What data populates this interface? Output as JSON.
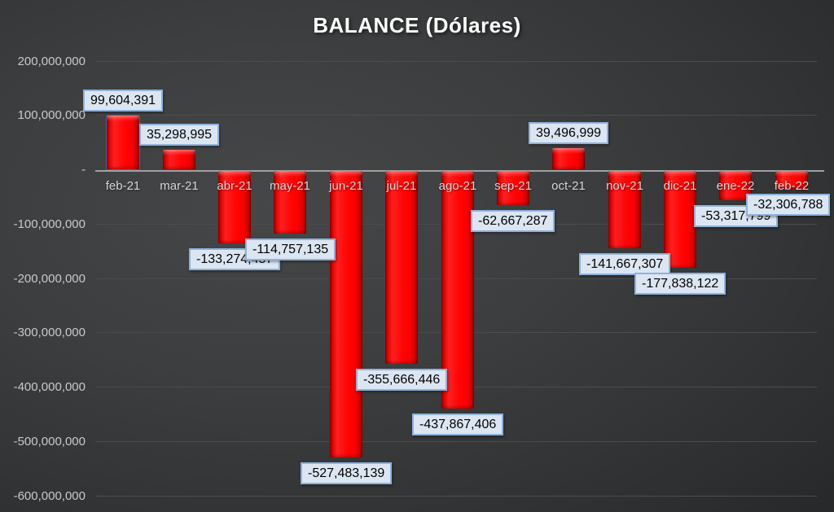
{
  "chart_data": {
    "type": "bar",
    "title": "BALANCE (Dólares)",
    "categories": [
      "feb-21",
      "mar-21",
      "abr-21",
      "may-21",
      "jun-21",
      "jul-21",
      "ago-21",
      "sep-21",
      "oct-21",
      "nov-21",
      "dic-21",
      "ene-22",
      "feb-22"
    ],
    "values": [
      99604391,
      35298995,
      -133274457,
      -114757135,
      -527483139,
      -355666446,
      -437867406,
      -62667287,
      39496999,
      -141667307,
      -177838122,
      -53317799,
      -32306788
    ],
    "data_labels": [
      "99,604,391",
      "35,298,995",
      "-133,274,457",
      "-114,757,135",
      "-527,483,139",
      "-355,666,446",
      "-437,867,406",
      "-62,667,287",
      "39,496,999",
      "-141,667,307",
      "-177,838,122",
      "-53,317,799",
      "-32,306,788"
    ],
    "y_tick_labels": [
      "200,000,000",
      "100,000,000",
      "-",
      "-100,000,000",
      "-200,000,000",
      "-300,000,000",
      "-400,000,000",
      "-500,000,000",
      "-600,000,000"
    ],
    "y_tick_values": [
      200000000,
      100000000,
      0,
      -100000000,
      -200000000,
      -300000000,
      -400000000,
      -500000000,
      -600000000
    ],
    "ylim": [
      -600000000,
      200000000
    ],
    "grid": true,
    "legend": "none",
    "highlighted_category": "feb-21",
    "bar_color": "#fe0000",
    "label_box_fill": "#dce6f2",
    "label_box_border": "#8fb2dc",
    "grid_color": "#4a4c4e",
    "axis_line_color": "#a0a0a0",
    "tick_text_color": "#c9c9c9",
    "title_color": "#ffffff"
  }
}
